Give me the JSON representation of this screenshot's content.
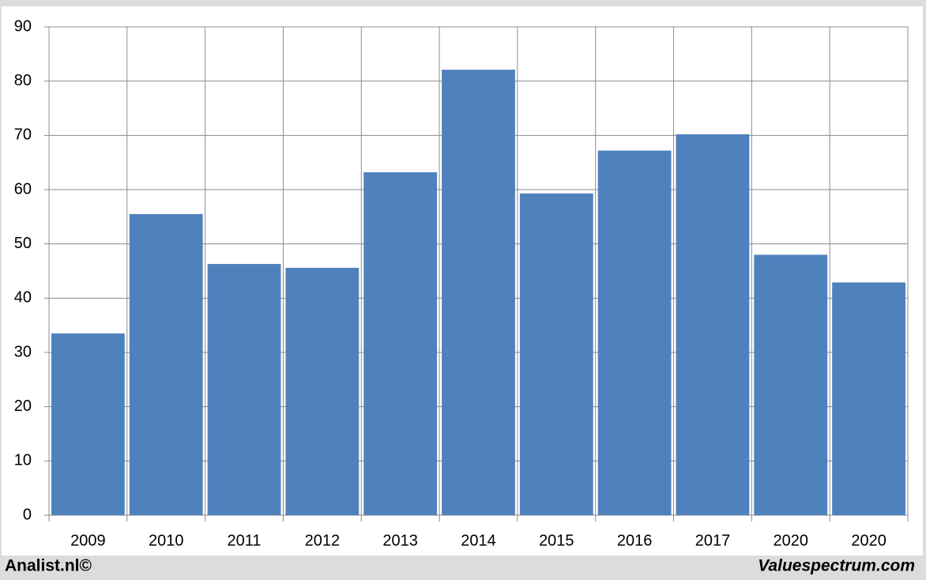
{
  "chart_data": {
    "type": "bar",
    "categories": [
      "2009",
      "2010",
      "2011",
      "2012",
      "2013",
      "2014",
      "2015",
      "2016",
      "2017",
      "2020",
      "2020"
    ],
    "values": [
      33.5,
      55.5,
      46.3,
      45.6,
      63.2,
      82.1,
      59.3,
      67.2,
      70.2,
      48,
      42.9
    ],
    "color": "#4f81bd",
    "ylim": [
      0,
      90
    ],
    "yticks": [
      0,
      10,
      20,
      30,
      40,
      50,
      60,
      70,
      80,
      90
    ],
    "grid": true
  },
  "footer": {
    "left": "Analist.nl©",
    "right": "Valuespectrum.com"
  }
}
